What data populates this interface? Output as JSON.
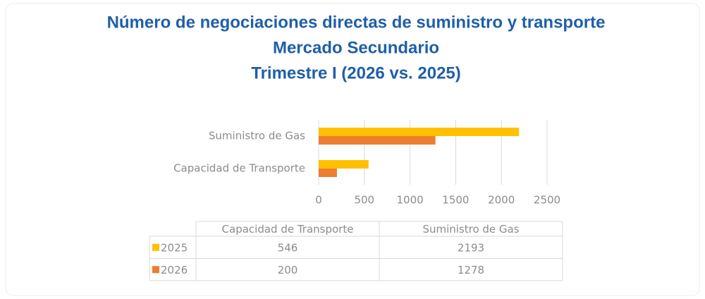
{
  "chart_data": {
    "type": "barh",
    "title": [
      "Número de negociaciones directas de suministro y transporte",
      "Mercado Secundario",
      "Trimestre I (2026 vs. 2025)"
    ],
    "categories": [
      "Capacidad de Transporte",
      "Suministro de Gas"
    ],
    "series": [
      {
        "name": "2025",
        "color": "#FFC000",
        "values": [
          546,
          2193
        ]
      },
      {
        "name": "2026",
        "color": "#ED7D31",
        "values": [
          200,
          1278
        ]
      }
    ],
    "xlim": [
      0,
      2500
    ],
    "xticks": [
      0,
      500,
      1000,
      1500,
      2000,
      2500
    ],
    "grid": true,
    "data_table": true
  }
}
